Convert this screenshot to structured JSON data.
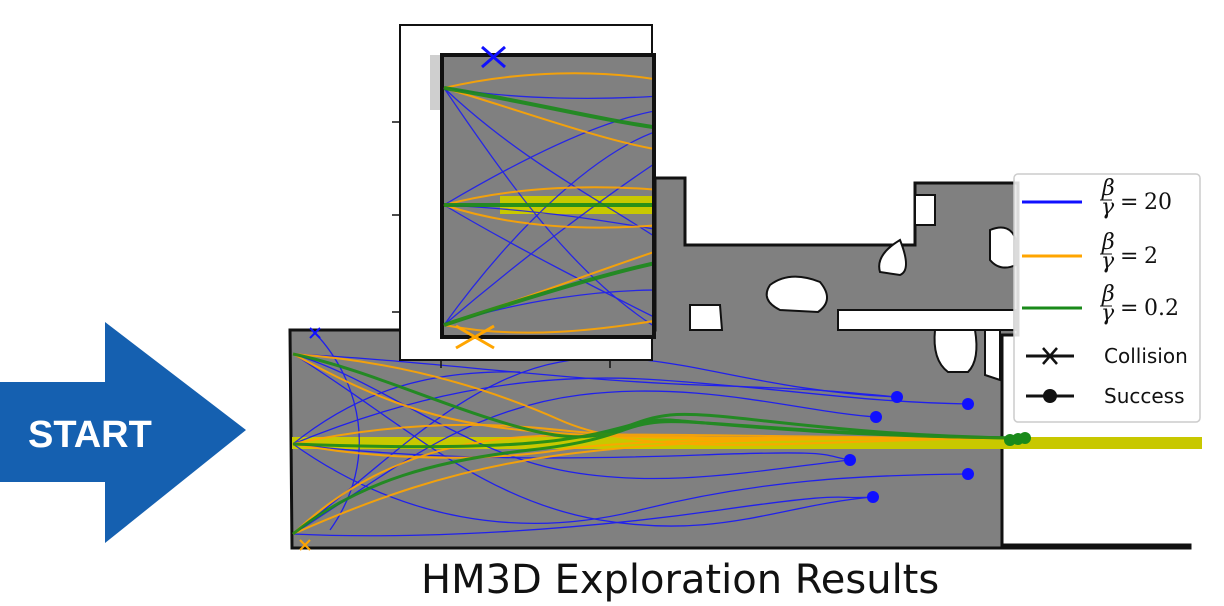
{
  "figure": {
    "start_label": "START",
    "title": "HM3D Exploration Results"
  },
  "legend": {
    "entries": [
      {
        "key": "beta20",
        "label_value": "20",
        "color": "#1010ff"
      },
      {
        "key": "beta2",
        "label_value": "2",
        "color": "#ffa500"
      },
      {
        "key": "beta02",
        "label_value": "0.2",
        "color": "#1a8a1a"
      }
    ],
    "collision_label": "Collision",
    "success_label": "Success"
  },
  "colors": {
    "map_fill": "#808080",
    "map_border": "#111111",
    "arrow": "#1560b0",
    "highlight_path": "#c8c800",
    "blue": "#1010ff",
    "orange": "#ffa500",
    "green": "#1a8a1a"
  },
  "icons": [
    "right-arrow-icon",
    "collision-x-icon",
    "success-dot-icon"
  ]
}
